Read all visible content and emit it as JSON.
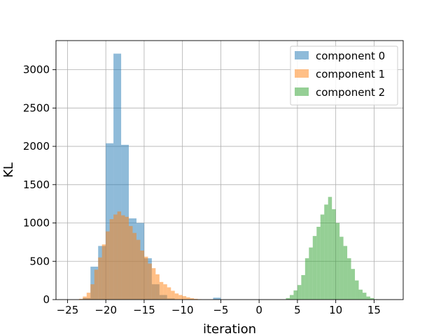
{
  "chart_data": {
    "type": "histogram",
    "title": "",
    "xlabel": "iteration",
    "ylabel": "KL",
    "xlim": [
      -26.5,
      18.8
    ],
    "ylim": [
      0,
      3380
    ],
    "xticks": [
      -25,
      -20,
      -15,
      -10,
      -5,
      0,
      5,
      10,
      15
    ],
    "yticks": [
      0,
      500,
      1000,
      1500,
      2000,
      2500,
      3000
    ],
    "grid": true,
    "legend_position": "top-right",
    "series": [
      {
        "name": "component 0",
        "color": "#1f77b4",
        "opacity": 0.5,
        "bins": [
          [
            -23.0,
            -22.0,
            20
          ],
          [
            -22.0,
            -21.0,
            430
          ],
          [
            -21.0,
            -20.0,
            700
          ],
          [
            -20.0,
            -19.0,
            2040
          ],
          [
            -19.0,
            -18.0,
            3210
          ],
          [
            -18.0,
            -17.0,
            2020
          ],
          [
            -17.0,
            -16.0,
            1060
          ],
          [
            -16.0,
            -15.0,
            1000
          ],
          [
            -15.0,
            -14.0,
            540
          ],
          [
            -14.0,
            -13.0,
            200
          ],
          [
            -13.0,
            -12.0,
            60
          ],
          [
            -12.0,
            -11.0,
            15
          ],
          [
            -6.0,
            -5.0,
            25
          ]
        ]
      },
      {
        "name": "component 1",
        "color": "#ff7f0e",
        "opacity": 0.5,
        "bins": [
          [
            -23.5,
            -23.0,
            10
          ],
          [
            -23.0,
            -22.5,
            40
          ],
          [
            -22.5,
            -22.0,
            90
          ],
          [
            -22.0,
            -21.5,
            200
          ],
          [
            -21.5,
            -21.0,
            390
          ],
          [
            -21.0,
            -20.5,
            550
          ],
          [
            -20.5,
            -20.0,
            720
          ],
          [
            -20.0,
            -19.5,
            890
          ],
          [
            -19.5,
            -19.0,
            1050
          ],
          [
            -19.0,
            -18.5,
            1110
          ],
          [
            -18.5,
            -18.0,
            1150
          ],
          [
            -18.0,
            -17.5,
            1100
          ],
          [
            -17.5,
            -17.0,
            1080
          ],
          [
            -17.0,
            -16.5,
            960
          ],
          [
            -16.5,
            -16.0,
            870
          ],
          [
            -16.0,
            -15.5,
            780
          ],
          [
            -15.5,
            -15.0,
            640
          ],
          [
            -15.0,
            -14.5,
            560
          ],
          [
            -14.5,
            -14.0,
            470
          ],
          [
            -14.0,
            -13.5,
            410
          ],
          [
            -13.5,
            -13.0,
            330
          ],
          [
            -13.0,
            -12.5,
            230
          ],
          [
            -12.5,
            -12.0,
            200
          ],
          [
            -12.0,
            -11.5,
            160
          ],
          [
            -11.5,
            -11.0,
            115
          ],
          [
            -11.0,
            -10.5,
            80
          ],
          [
            -10.5,
            -10.0,
            60
          ],
          [
            -10.0,
            -9.5,
            45
          ],
          [
            -9.5,
            -9.0,
            30
          ],
          [
            -9.0,
            -8.5,
            18
          ],
          [
            -8.5,
            -8.0,
            10
          ],
          [
            -8.0,
            -7.5,
            5
          ]
        ]
      },
      {
        "name": "component 2",
        "color": "#2ca02c",
        "opacity": 0.5,
        "bins": [
          [
            3.5,
            4.0,
            20
          ],
          [
            4.0,
            4.5,
            60
          ],
          [
            4.5,
            5.0,
            120
          ],
          [
            5.0,
            5.5,
            190
          ],
          [
            5.5,
            6.0,
            320
          ],
          [
            6.0,
            6.5,
            540
          ],
          [
            6.5,
            7.0,
            680
          ],
          [
            7.0,
            7.5,
            830
          ],
          [
            7.5,
            8.0,
            950
          ],
          [
            8.0,
            8.5,
            1110
          ],
          [
            8.5,
            9.0,
            1240
          ],
          [
            9.0,
            9.5,
            1340
          ],
          [
            9.5,
            10.0,
            1180
          ],
          [
            10.0,
            10.5,
            1000
          ],
          [
            10.5,
            11.0,
            820
          ],
          [
            11.0,
            11.5,
            700
          ],
          [
            11.5,
            12.0,
            540
          ],
          [
            12.0,
            12.5,
            400
          ],
          [
            12.5,
            13.0,
            250
          ],
          [
            13.0,
            13.5,
            130
          ],
          [
            13.5,
            14.0,
            90
          ],
          [
            14.0,
            14.5,
            40
          ],
          [
            14.5,
            15.0,
            20
          ],
          [
            15.0,
            15.5,
            5
          ]
        ]
      }
    ]
  }
}
